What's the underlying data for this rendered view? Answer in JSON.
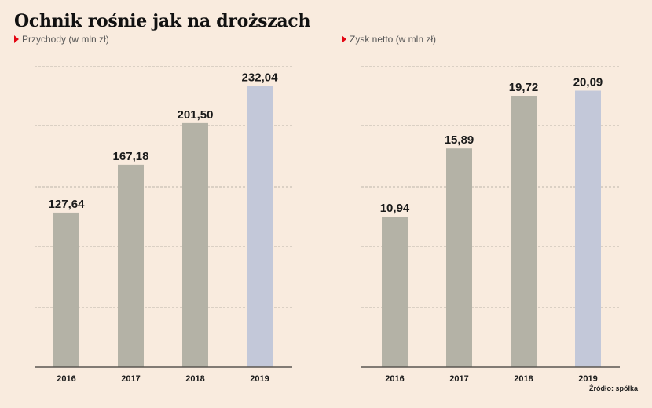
{
  "title": "Ochnik rośnie jak na droższach",
  "source": "Źródło: spółka",
  "colors": {
    "bar": "#b4b2a6",
    "highlight": "#c3c8d9",
    "background": "#f9ebde",
    "marker": "#e30613"
  },
  "chart_data": [
    {
      "type": "bar",
      "title": "Przychody (w mln zł)",
      "categories": [
        "2016",
        "2017",
        "2018",
        "2019"
      ],
      "values": [
        127.64,
        167.18,
        201.5,
        232.04
      ],
      "value_labels": [
        "127,64",
        "167,18",
        "201,50",
        "232,04"
      ],
      "highlight_index": 3,
      "ylim": [
        0,
        250
      ],
      "grid": true
    },
    {
      "type": "bar",
      "title": "Zysk netto (w mln zł)",
      "categories": [
        "2016",
        "2017",
        "2018",
        "2019"
      ],
      "values": [
        10.94,
        15.89,
        19.72,
        20.09
      ],
      "value_labels": [
        "10,94",
        "15,89",
        "19,72",
        "20,09"
      ],
      "highlight_index": 3,
      "ylim": [
        0,
        22
      ],
      "grid": true
    }
  ]
}
